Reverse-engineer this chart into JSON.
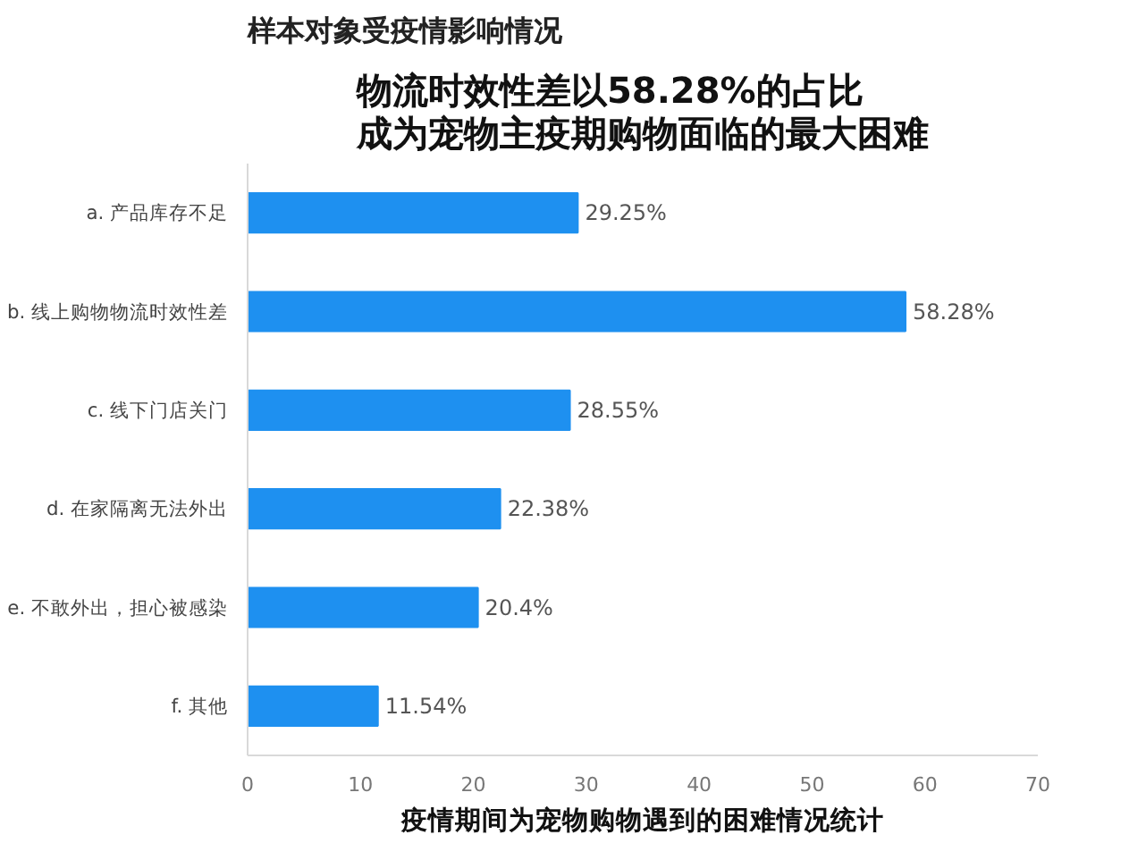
{
  "chart_data": {
    "type": "bar",
    "orientation": "horizontal",
    "title": "样本对象受疫情影响情况",
    "subtitle": "物流时效性差以58.28%的占比成为宠物主疫期购物面临的最大困难",
    "xlabel": "疫情期间为宠物购物遇到的困难情况统计",
    "categories": [
      "a. 产品库存不足",
      "b. 线上购物物流时效性差",
      "c. 线下门店关门",
      "d. 在家隔离无法外出",
      "e. 不敢外出，担心被感染",
      "f. 其他"
    ],
    "values": [
      29.25,
      58.28,
      28.55,
      22.38,
      20.4,
      11.54
    ],
    "value_labels": [
      "29.25%",
      "58.28%",
      "28.55%",
      "22.38%",
      "20.4%",
      "11.54%"
    ],
    "color": "#1e90f0",
    "xlim": [
      0,
      70
    ],
    "xticks": [
      0,
      10,
      20,
      30,
      40,
      50,
      60,
      70
    ],
    "grid": false
  }
}
